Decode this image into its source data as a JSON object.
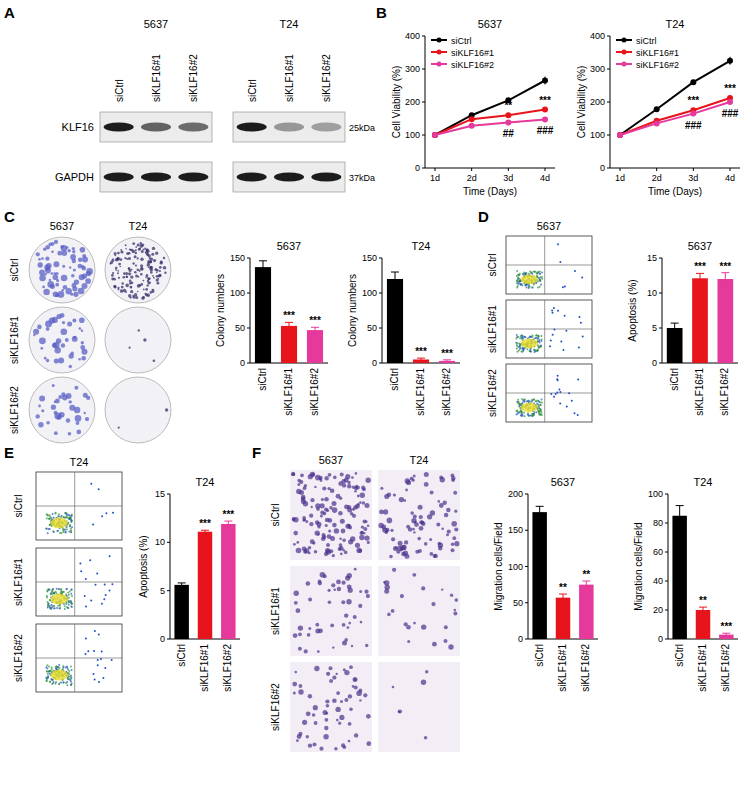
{
  "panel_labels": [
    "A",
    "B",
    "C",
    "D",
    "E",
    "F"
  ],
  "western_blot": {
    "cell_lines": [
      "5637",
      "T24"
    ],
    "lanes": [
      "siCtrl",
      "siKLF16#1",
      "siKLF16#2"
    ],
    "proteins": [
      "KLF16",
      "GAPDH"
    ],
    "sizes": [
      "25kDa",
      "37kDa"
    ]
  },
  "colony_images": {
    "columns": [
      "5637",
      "T24"
    ],
    "rows": [
      "siCtrl",
      "siKLF16#1",
      "siKLF16#2"
    ]
  },
  "flow_5637": {
    "title": "5637",
    "rows": [
      "siCtrl",
      "siKLF16#1",
      "siKLF16#2"
    ]
  },
  "flow_T24": {
    "title": "T24",
    "rows": [
      "siCtrl",
      "siKLF16#1",
      "siKLF16#2"
    ]
  },
  "migration_images": {
    "columns": [
      "5637",
      "T24"
    ],
    "rows": [
      "siCtrl",
      "siKLF16#1",
      "siKLF16#2"
    ]
  },
  "chart_data": [
    {
      "type": "line",
      "title": "5637",
      "x_label": "Time (Days)",
      "y_label": "Cell Viability (%)",
      "categories": [
        "1d",
        "2d",
        "3d",
        "4d"
      ],
      "ylim": [
        0,
        400
      ],
      "yticks": [
        0,
        100,
        200,
        300,
        400
      ],
      "legend": "upper left",
      "marker": "circle",
      "series": [
        {
          "name": "siCtrl",
          "color": "#000000",
          "values": [
            100,
            160,
            205,
            265
          ],
          "errors": [
            0,
            3,
            7,
            12
          ]
        },
        {
          "name": "siKLF16#1",
          "color": "#e8141b",
          "values": [
            100,
            148,
            160,
            177
          ],
          "errors": [
            0,
            3,
            4,
            4
          ],
          "significance": [
            null,
            null,
            "**",
            "***"
          ]
        },
        {
          "name": "siKLF16#2",
          "color": "#e53a9b",
          "values": [
            100,
            128,
            138,
            147
          ],
          "errors": [
            0,
            3,
            3,
            3
          ],
          "significance": [
            null,
            null,
            "##",
            "###"
          ]
        }
      ]
    },
    {
      "type": "line",
      "title": "T24",
      "x_label": "Time (Days)",
      "y_label": "Cell Viability (%)",
      "categories": [
        "1d",
        "2d",
        "3d",
        "4d"
      ],
      "ylim": [
        0,
        400
      ],
      "yticks": [
        0,
        100,
        200,
        300,
        400
      ],
      "legend": "upper left",
      "marker": "circle",
      "series": [
        {
          "name": "siCtrl",
          "color": "#000000",
          "values": [
            100,
            178,
            260,
            325
          ],
          "errors": [
            0,
            3,
            8,
            12
          ]
        },
        {
          "name": "siKLF16#1",
          "color": "#e8141b",
          "values": [
            100,
            143,
            175,
            212
          ],
          "errors": [
            0,
            3,
            4,
            5
          ],
          "significance": [
            null,
            null,
            "***",
            "***"
          ]
        },
        {
          "name": "siKLF16#2",
          "color": "#e53a9b",
          "values": [
            100,
            135,
            165,
            200
          ],
          "errors": [
            0,
            3,
            4,
            4
          ],
          "significance": [
            null,
            null,
            "###",
            "###"
          ]
        }
      ]
    },
    {
      "type": "bar",
      "title": "5637",
      "y_label": "Colony numbers",
      "categories": [
        "siCtrl",
        "siKLF16#1",
        "siKLF16#2"
      ],
      "values": [
        137,
        53,
        47
      ],
      "errors": [
        9,
        5,
        4
      ],
      "significance": [
        null,
        "***",
        "***"
      ],
      "colors": [
        "#000000",
        "#e8141b",
        "#e53a9b"
      ],
      "ylim": [
        0,
        150
      ],
      "yticks": [
        0,
        50,
        100,
        150
      ]
    },
    {
      "type": "bar",
      "title": "T24",
      "y_label": "Colony numbers",
      "categories": [
        "siCtrl",
        "siKLF16#1",
        "siKLF16#2"
      ],
      "values": [
        120,
        5,
        3
      ],
      "errors": [
        10,
        2,
        1.5
      ],
      "significance": [
        null,
        "***",
        "***"
      ],
      "colors": [
        "#000000",
        "#e8141b",
        "#e53a9b"
      ],
      "ylim": [
        0,
        150
      ],
      "yticks": [
        0,
        50,
        100,
        150
      ]
    },
    {
      "type": "bar",
      "title": "5637",
      "y_label": "Apoptosis (%)",
      "categories": [
        "siCtrl",
        "siKLF16#1",
        "siKLF16#2"
      ],
      "values": [
        5,
        12.1,
        12
      ],
      "errors": [
        0.7,
        0.7,
        0.9
      ],
      "significance": [
        null,
        "***",
        "***"
      ],
      "colors": [
        "#000000",
        "#e8141b",
        "#e53a9b"
      ],
      "ylim": [
        0,
        15
      ],
      "yticks": [
        0,
        5,
        10,
        15
      ]
    },
    {
      "type": "bar",
      "title": "T24",
      "y_label": "Apoptosis (%)",
      "categories": [
        "siCtrl",
        "siKLF16#1",
        "siKLF16#2"
      ],
      "values": [
        5.6,
        11.1,
        11.9
      ],
      "errors": [
        0.2,
        0.15,
        0.3
      ],
      "significance": [
        null,
        "***",
        "***"
      ],
      "colors": [
        "#000000",
        "#e8141b",
        "#e53a9b"
      ],
      "ylim": [
        0,
        15
      ],
      "yticks": [
        0,
        5,
        10,
        15
      ]
    },
    {
      "type": "bar",
      "title": "5637",
      "y_label": "Migration cells/Field",
      "categories": [
        "siCtrl",
        "siKLF16#1",
        "siKLF16#2"
      ],
      "values": [
        175,
        57,
        75
      ],
      "errors": [
        8,
        5,
        5
      ],
      "significance": [
        null,
        "**",
        "**"
      ],
      "colors": [
        "#000000",
        "#e8141b",
        "#e53a9b"
      ],
      "ylim": [
        0,
        200
      ],
      "yticks": [
        0,
        50,
        100,
        150,
        200
      ]
    },
    {
      "type": "bar",
      "title": "T24",
      "y_label": "Migration cells/Field",
      "categories": [
        "siCtrl",
        "siKLF16#1",
        "siKLF16#2"
      ],
      "values": [
        85,
        20,
        3
      ],
      "errors": [
        7,
        2,
        1
      ],
      "significance": [
        null,
        "**",
        "***"
      ],
      "colors": [
        "#000000",
        "#e8141b",
        "#e53a9b"
      ],
      "ylim": [
        0,
        100
      ],
      "yticks": [
        0,
        20,
        40,
        60,
        80,
        100
      ]
    }
  ]
}
